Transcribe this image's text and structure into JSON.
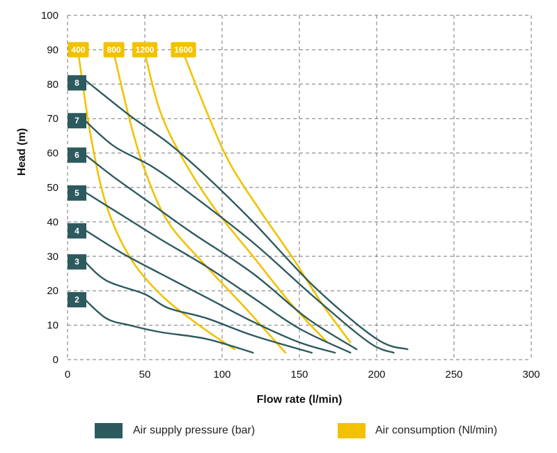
{
  "chart_data": {
    "type": "line",
    "title": "",
    "xlabel": "Flow rate (l/min)",
    "ylabel": "Head (m)",
    "xlim": [
      0,
      300
    ],
    "ylim": [
      0,
      100
    ],
    "x_ticks": [
      0,
      50,
      100,
      150,
      200,
      250,
      300
    ],
    "y_ticks": [
      0,
      10,
      20,
      30,
      40,
      50,
      60,
      70,
      80,
      90,
      100
    ],
    "grid": "dashed",
    "colors": {
      "pressure": "#2d5a5e",
      "consumption": "#f2c200"
    },
    "legend": {
      "placement": "bottom",
      "items": [
        {
          "key": "pressure",
          "label": "Air supply pressure (bar)"
        },
        {
          "key": "consumption",
          "label": "Air consumption (Nl/min)"
        }
      ]
    },
    "pressure_series": [
      {
        "name": "8",
        "points": [
          [
            12,
            81
          ],
          [
            40,
            71
          ],
          [
            65,
            63
          ],
          [
            88,
            54
          ],
          [
            120,
            40
          ],
          [
            160,
            21
          ],
          [
            200,
            6
          ],
          [
            220,
            3
          ]
        ]
      },
      {
        "name": "7",
        "points": [
          [
            10,
            70
          ],
          [
            30,
            62
          ],
          [
            55,
            56
          ],
          [
            80,
            48
          ],
          [
            120,
            34
          ],
          [
            160,
            18
          ],
          [
            195,
            5
          ],
          [
            211,
            2
          ]
        ]
      },
      {
        "name": "6",
        "points": [
          [
            10,
            60
          ],
          [
            30,
            53
          ],
          [
            55,
            45
          ],
          [
            80,
            37
          ],
          [
            120,
            25
          ],
          [
            155,
            12
          ],
          [
            187,
            3
          ]
        ]
      },
      {
        "name": "5",
        "points": [
          [
            10,
            49
          ],
          [
            35,
            42
          ],
          [
            60,
            35
          ],
          [
            90,
            27
          ],
          [
            120,
            18
          ],
          [
            150,
            9
          ],
          [
            183,
            2
          ]
        ]
      },
      {
        "name": "4",
        "points": [
          [
            10,
            38
          ],
          [
            35,
            31
          ],
          [
            60,
            25
          ],
          [
            90,
            18
          ],
          [
            120,
            11
          ],
          [
            150,
            5
          ],
          [
            173,
            2
          ]
        ]
      },
      {
        "name": "3",
        "points": [
          [
            10,
            29
          ],
          [
            25,
            23
          ],
          [
            50,
            19
          ],
          [
            65,
            15
          ],
          [
            90,
            12
          ],
          [
            120,
            7
          ],
          [
            158,
            2
          ]
        ]
      },
      {
        "name": "2",
        "points": [
          [
            10,
            18
          ],
          [
            25,
            12
          ],
          [
            40,
            10
          ],
          [
            60,
            8
          ],
          [
            90,
            6
          ],
          [
            120,
            2
          ]
        ]
      }
    ],
    "consumption_series": [
      {
        "name": "400",
        "points": [
          [
            7,
            89
          ],
          [
            15,
            65
          ],
          [
            25,
            45
          ],
          [
            40,
            30
          ],
          [
            60,
            19
          ],
          [
            85,
            10
          ],
          [
            108,
            3
          ]
        ]
      },
      {
        "name": "800",
        "points": [
          [
            30,
            89
          ],
          [
            40,
            70
          ],
          [
            50,
            55
          ],
          [
            65,
            40
          ],
          [
            90,
            27
          ],
          [
            115,
            15
          ],
          [
            141,
            2
          ]
        ]
      },
      {
        "name": "1200",
        "points": [
          [
            50,
            89
          ],
          [
            60,
            72
          ],
          [
            75,
            58
          ],
          [
            95,
            44
          ],
          [
            120,
            30
          ],
          [
            145,
            16
          ],
          [
            168,
            5
          ]
        ]
      },
      {
        "name": "1600",
        "points": [
          [
            75,
            89
          ],
          [
            90,
            72
          ],
          [
            105,
            57
          ],
          [
            125,
            43
          ],
          [
            145,
            30
          ],
          [
            165,
            16
          ],
          [
            183,
            5
          ]
        ]
      }
    ]
  }
}
